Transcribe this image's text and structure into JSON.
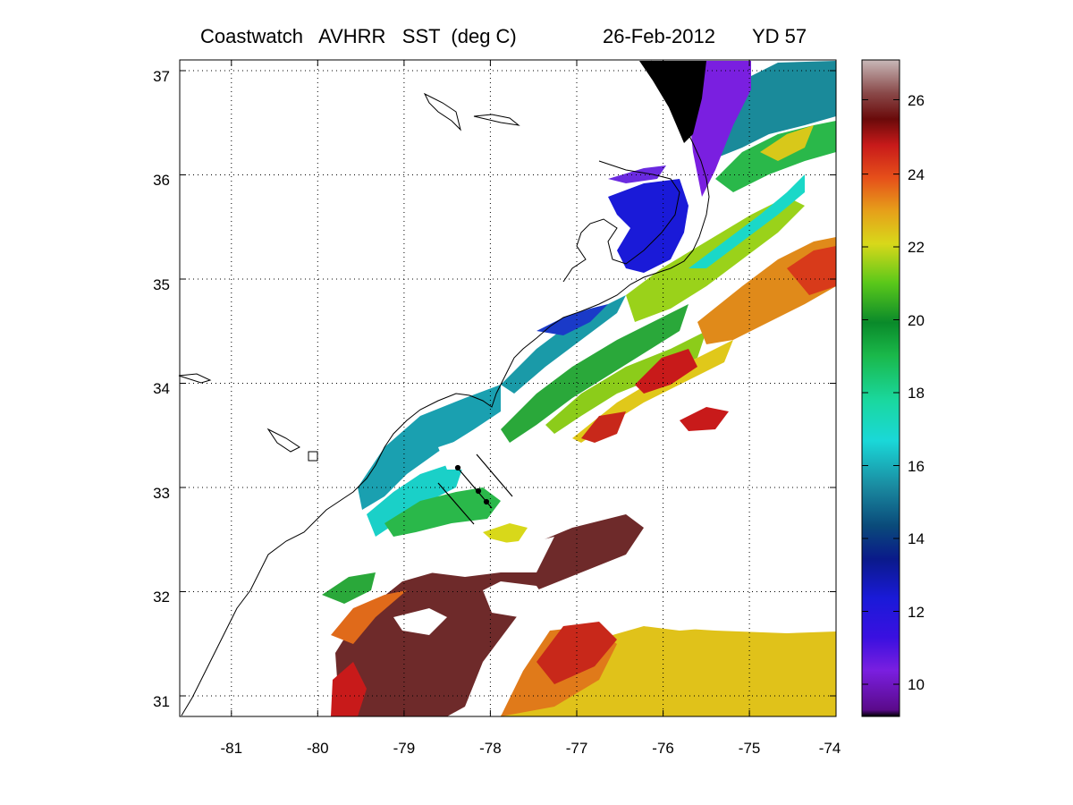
{
  "title": {
    "main": "Coastwatch   AVHRR   SST  (deg C)",
    "date": "26-Feb-2012",
    "yearday": "YD 57"
  },
  "map": {
    "lon_range": [
      -81.6,
      -74
    ],
    "lat_range": [
      30.8,
      37.1
    ],
    "x_ticks": [
      "-81",
      "-80",
      "-79",
      "-78",
      "-77",
      "-76",
      "-75",
      "-74"
    ],
    "y_ticks": [
      "37",
      "36",
      "35",
      "34",
      "33",
      "32",
      "31"
    ],
    "grid": "dotted"
  },
  "colorbar": {
    "range": [
      9,
      27
    ],
    "ticks": [
      "26",
      "24",
      "22",
      "20",
      "18",
      "16",
      "14",
      "12",
      "10"
    ]
  },
  "colors": {
    "cold_black": "#000000",
    "violet": "#7a1fe0",
    "blue": "#1a1ad8",
    "teal": "#1aa8a8",
    "cyan": "#1ad8d0",
    "green": "#1ab83a",
    "lime": "#8cd21a",
    "yellow": "#e6d81a",
    "orange": "#e6781a",
    "red": "#c81a1a",
    "brown": "#6e2a2a"
  }
}
